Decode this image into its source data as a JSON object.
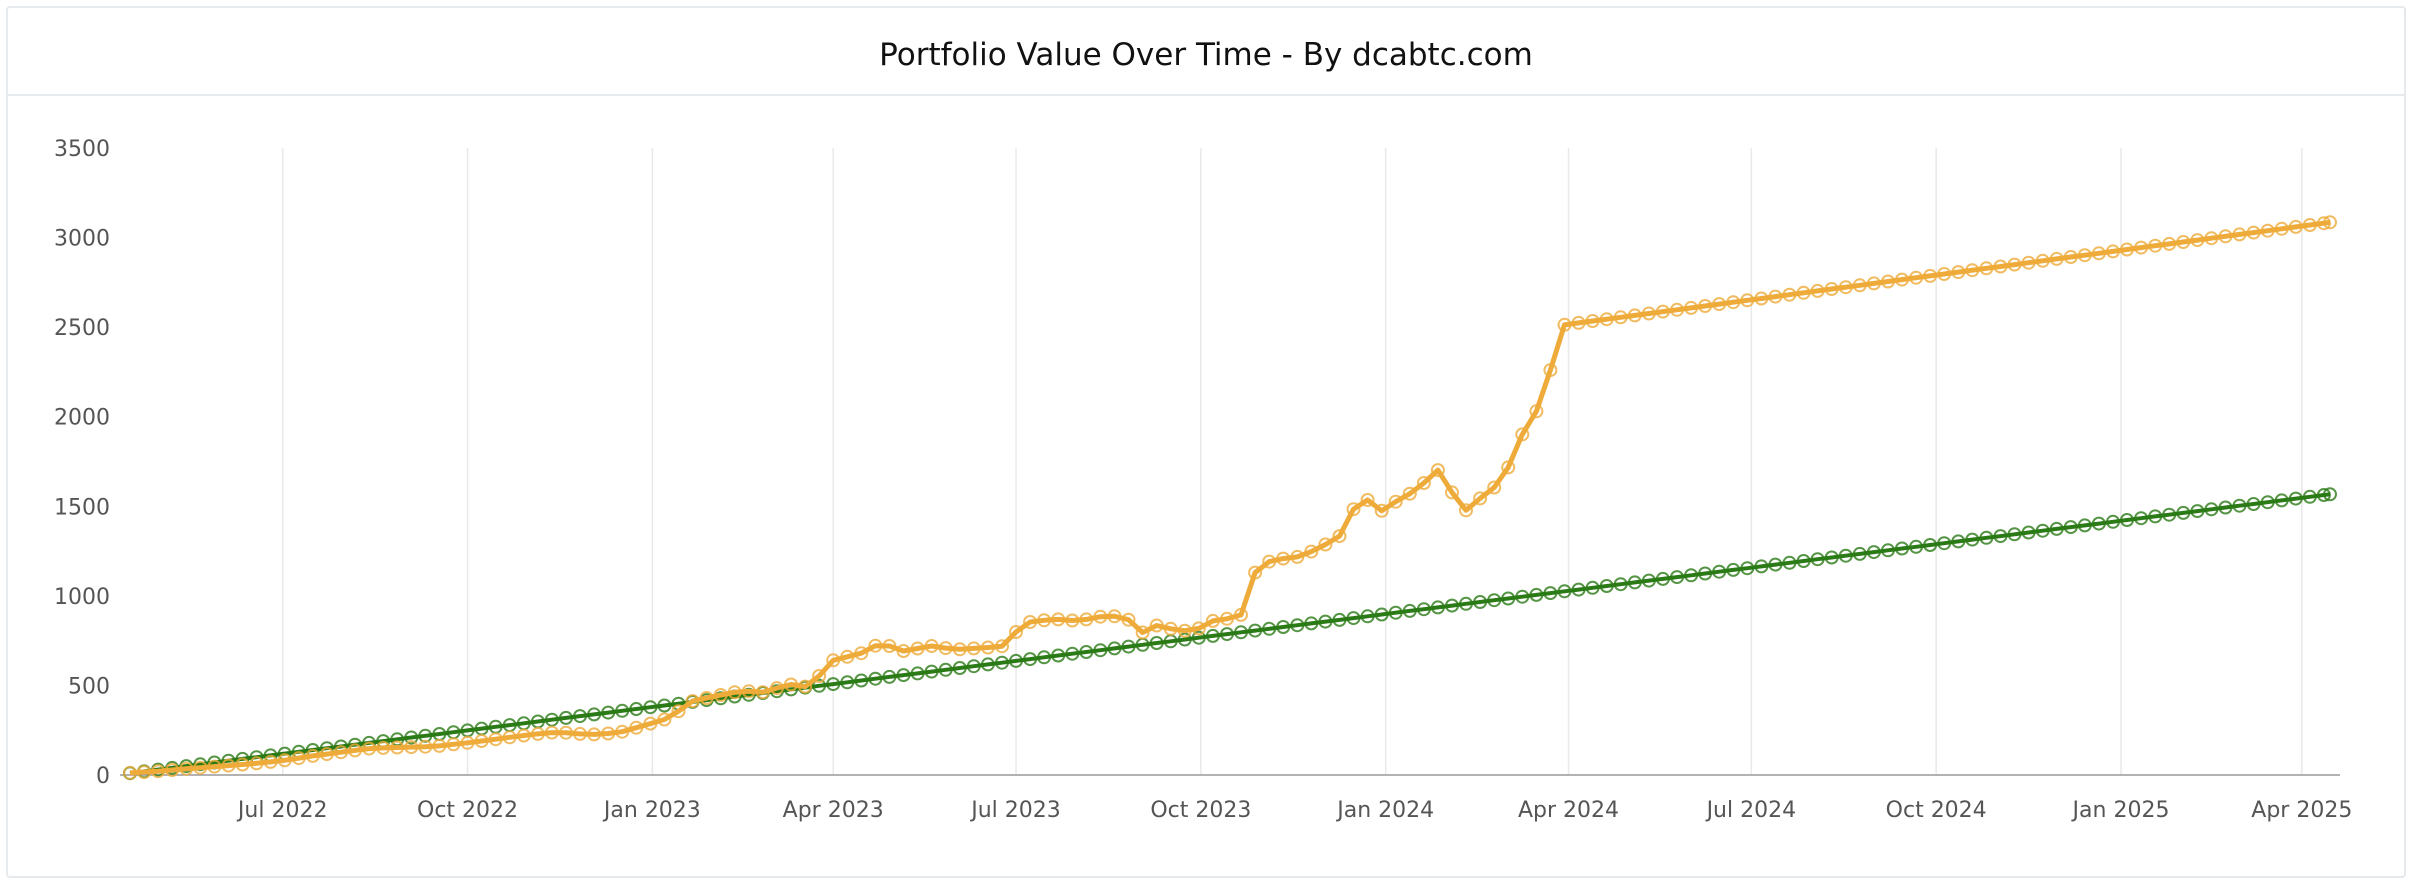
{
  "chart_data": {
    "type": "line",
    "title": "Portfolio Value Over Time - By dcabtc.com",
    "xlabel": "",
    "ylabel": "",
    "ylim": [
      0,
      3500
    ],
    "yticks": [
      0,
      500,
      1000,
      1500,
      2000,
      2500,
      3000,
      3500
    ],
    "xlim": [
      "2022-04-15",
      "2025-04-20"
    ],
    "xticks": [
      {
        "date": "2022-07-01",
        "label": "Jul 2022"
      },
      {
        "date": "2022-10-01",
        "label": "Oct 2022"
      },
      {
        "date": "2023-01-01",
        "label": "Jan 2023"
      },
      {
        "date": "2023-04-01",
        "label": "Apr 2023"
      },
      {
        "date": "2023-07-01",
        "label": "Jul 2023"
      },
      {
        "date": "2023-10-01",
        "label": "Oct 2023"
      },
      {
        "date": "2024-01-01",
        "label": "Jan 2024"
      },
      {
        "date": "2024-04-01",
        "label": "Apr 2024"
      },
      {
        "date": "2024-07-01",
        "label": "Jul 2024"
      },
      {
        "date": "2024-10-01",
        "label": "Oct 2024"
      },
      {
        "date": "2025-01-01",
        "label": "Jan 2025"
      },
      {
        "date": "2025-04-01",
        "label": "Apr 2025"
      }
    ],
    "grid": "vertical",
    "legend": "none",
    "series": [
      {
        "color": "#eeab3a",
        "points": [
          [
            "2022-04-16",
            12
          ],
          [
            "2022-05-01",
            22
          ],
          [
            "2022-05-15",
            36
          ],
          [
            "2022-06-01",
            50
          ],
          [
            "2022-06-15",
            62
          ],
          [
            "2022-07-01",
            80
          ],
          [
            "2022-07-15",
            105
          ],
          [
            "2022-08-01",
            130
          ],
          [
            "2022-08-15",
            150
          ],
          [
            "2022-09-01",
            155
          ],
          [
            "2022-09-15",
            160
          ],
          [
            "2022-10-01",
            180
          ],
          [
            "2022-10-15",
            200
          ],
          [
            "2022-11-01",
            225
          ],
          [
            "2022-11-15",
            240
          ],
          [
            "2022-12-01",
            225
          ],
          [
            "2022-12-15",
            235
          ],
          [
            "2023-01-01",
            290
          ],
          [
            "2023-01-10",
            320
          ],
          [
            "2023-01-20",
            410
          ],
          [
            "2023-02-01",
            440
          ],
          [
            "2023-02-15",
            470
          ],
          [
            "2023-02-28",
            460
          ],
          [
            "2023-03-08",
            510
          ],
          [
            "2023-03-20",
            490
          ],
          [
            "2023-04-01",
            640
          ],
          [
            "2023-04-15",
            680
          ],
          [
            "2023-04-25",
            740
          ],
          [
            "2023-05-05",
            690
          ],
          [
            "2023-05-20",
            720
          ],
          [
            "2023-06-01",
            700
          ],
          [
            "2023-06-15",
            710
          ],
          [
            "2023-06-25",
            720
          ],
          [
            "2023-07-05",
            850
          ],
          [
            "2023-07-20",
            870
          ],
          [
            "2023-08-01",
            860
          ],
          [
            "2023-08-15",
            890
          ],
          [
            "2023-08-25",
            880
          ],
          [
            "2023-09-01",
            790
          ],
          [
            "2023-09-10",
            840
          ],
          [
            "2023-09-20",
            800
          ],
          [
            "2023-10-01",
            820
          ],
          [
            "2023-10-10",
            880
          ],
          [
            "2023-10-20",
            860
          ],
          [
            "2023-10-28",
            1130
          ],
          [
            "2023-11-05",
            1200
          ],
          [
            "2023-11-20",
            1220
          ],
          [
            "2023-12-01",
            1280
          ],
          [
            "2023-12-10",
            1340
          ],
          [
            "2023-12-20",
            1580
          ],
          [
            "2023-12-28",
            1460
          ],
          [
            "2024-01-08",
            1540
          ],
          [
            "2024-01-18",
            1600
          ],
          [
            "2024-01-26",
            1720
          ],
          [
            "2024-02-04",
            1560
          ],
          [
            "2024-02-12",
            1450
          ],
          [
            "2024-02-20",
            1600
          ],
          [
            "2024-02-28",
            1610
          ],
          [
            "2024-03-06",
            1860
          ],
          [
            "2024-03-14",
            1970
          ],
          [
            "2024-03-22",
            2210
          ],
          [
            "2024-03-28",
            2510
          ],
          [
            "2025-04-15",
            3085
          ]
        ]
      },
      {
        "color": "#2a7a16",
        "points": [
          [
            "2022-04-16",
            10
          ],
          [
            "2025-04-15",
            1567
          ]
        ]
      }
    ]
  }
}
